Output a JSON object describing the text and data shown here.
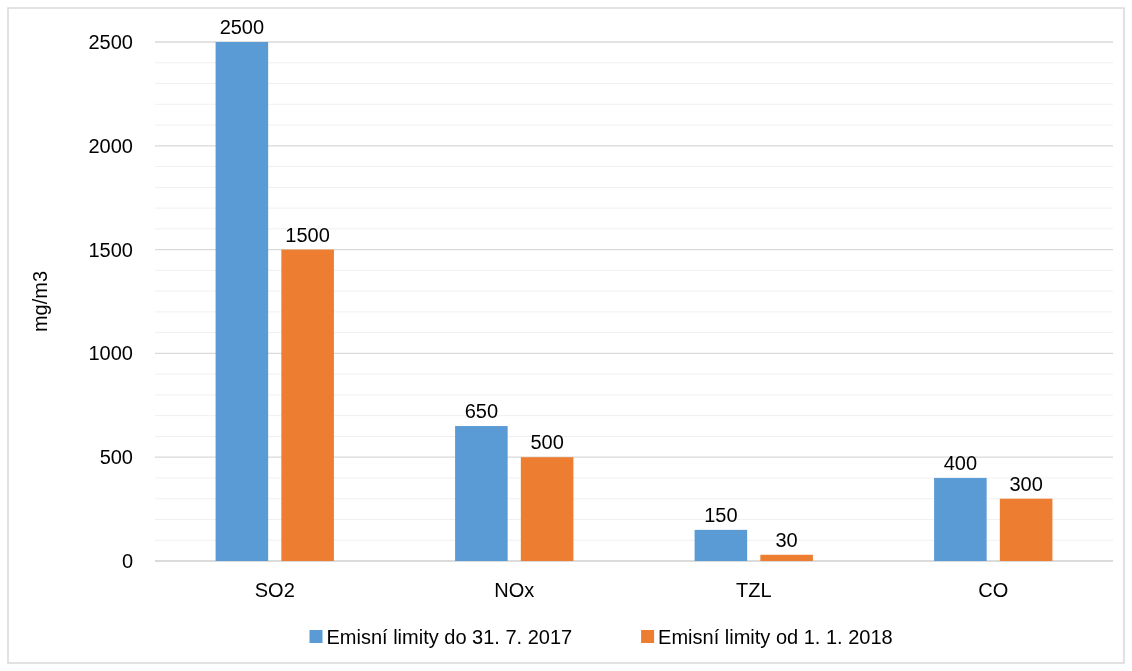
{
  "chart_data": {
    "type": "bar",
    "ylabel": "mg/m3",
    "categories": [
      "SO2",
      "NOx",
      "TZL",
      "CO"
    ],
    "series": [
      {
        "name": "Emisní limity do 31. 7. 2017",
        "color": "#5b9bd5",
        "values": [
          2500,
          650,
          150,
          400
        ]
      },
      {
        "name": "Emisní limity od 1. 1. 2018",
        "color": "#ed7d31",
        "values": [
          1500,
          500,
          30,
          300
        ]
      }
    ],
    "ylim": [
      0,
      2500
    ],
    "yticks": [
      0,
      {
        "value": 100,
        "label": null
      },
      {
        "value": 200,
        "label": null
      },
      {
        "value": 300,
        "label": null
      },
      {
        "value": 400,
        "label": null
      },
      500,
      {
        "value": 600,
        "label": null
      },
      {
        "value": 700,
        "label": null
      },
      {
        "value": 800,
        "label": null
      },
      {
        "value": 900,
        "label": null
      },
      1000,
      {
        "value": 1100,
        "label": null
      },
      {
        "value": 1200,
        "label": null
      },
      {
        "value": 1300,
        "label": null
      },
      {
        "value": 1400,
        "label": null
      },
      1500,
      {
        "value": 1600,
        "label": null
      },
      {
        "value": 1700,
        "label": null
      },
      {
        "value": 1800,
        "label": null
      },
      {
        "value": 1900,
        "label": null
      },
      2000,
      {
        "value": 2100,
        "label": null
      },
      {
        "value": 2200,
        "label": null
      },
      {
        "value": 2300,
        "label": null
      },
      {
        "value": 2400,
        "label": null
      },
      2500
    ],
    "grid": "y",
    "legend": "bottom",
    "data_labels": true
  }
}
